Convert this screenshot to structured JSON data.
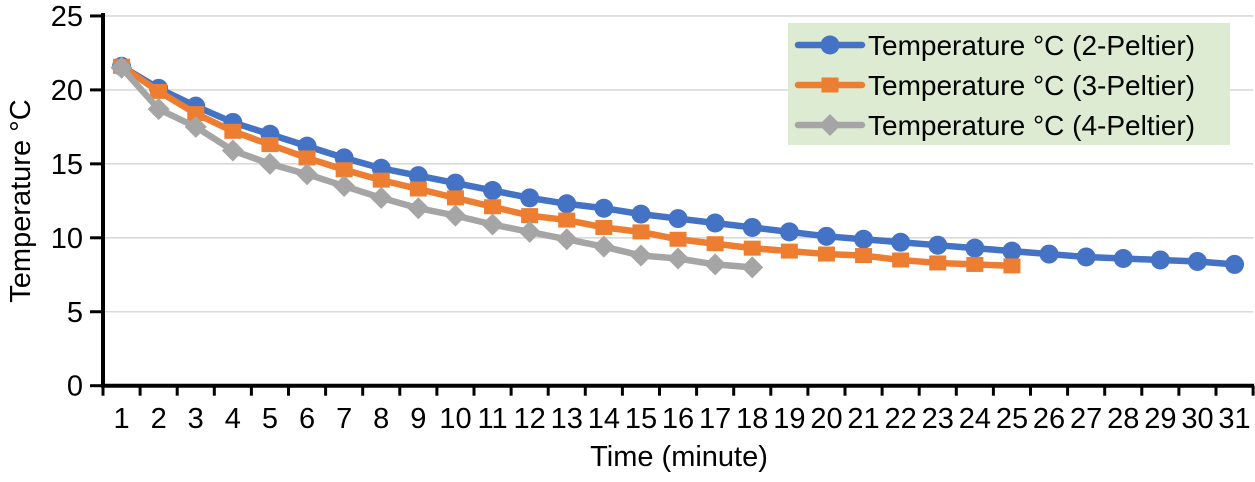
{
  "chart_data": {
    "type": "line",
    "xlabel": "Time (minute)",
    "ylabel": "Temperature °C",
    "x_ticks": [
      1,
      2,
      3,
      4,
      5,
      6,
      7,
      8,
      9,
      10,
      11,
      12,
      13,
      14,
      15,
      16,
      17,
      18,
      19,
      20,
      21,
      22,
      23,
      24,
      25,
      26,
      27,
      28,
      29,
      30,
      31
    ],
    "y_ticks": [
      0,
      5,
      10,
      15,
      20,
      25
    ],
    "ylim": [
      0,
      25
    ],
    "xlim_categories": 31,
    "grid": "horizontal",
    "gridline_color": "#D9D9D9",
    "axis_color": "#000000",
    "legend": {
      "position": "top-right",
      "background": "#DCEBD1"
    },
    "series": [
      {
        "name": "Temperature °C (2-Peltier)",
        "color": "#4472C4",
        "marker": "circle",
        "x_start": 1,
        "values": [
          21.6,
          20.1,
          18.9,
          17.8,
          17.0,
          16.2,
          15.4,
          14.7,
          14.2,
          13.7,
          13.2,
          12.7,
          12.3,
          12.0,
          11.6,
          11.3,
          11.0,
          10.7,
          10.4,
          10.1,
          9.9,
          9.7,
          9.5,
          9.3,
          9.1,
          8.9,
          8.7,
          8.6,
          8.5,
          8.4,
          8.2
        ]
      },
      {
        "name": "Temperature °C (3-Peltier)",
        "color": "#ED7D31",
        "marker": "square",
        "x_start": 1,
        "values": [
          21.6,
          19.9,
          18.4,
          17.2,
          16.3,
          15.4,
          14.6,
          13.9,
          13.3,
          12.7,
          12.1,
          11.5,
          11.2,
          10.7,
          10.4,
          9.9,
          9.6,
          9.3,
          9.1,
          8.9,
          8.8,
          8.5,
          8.3,
          8.2,
          8.1
        ]
      },
      {
        "name": "Temperature °C (4-Peltier)",
        "color": "#A5A5A5",
        "marker": "diamond",
        "x_start": 1,
        "values": [
          21.5,
          18.7,
          17.5,
          15.9,
          15.0,
          14.3,
          13.5,
          12.7,
          12.0,
          11.5,
          10.9,
          10.4,
          9.9,
          9.4,
          8.8,
          8.6,
          8.2,
          8.0
        ]
      }
    ]
  }
}
